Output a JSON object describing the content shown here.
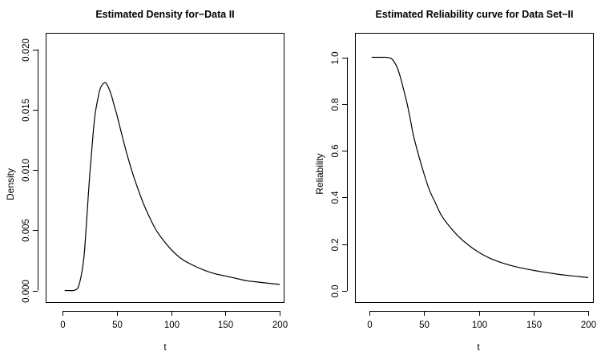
{
  "chart_data": [
    {
      "type": "line",
      "title": "Estimated Density for−Data II",
      "xlabel": "t",
      "ylabel": "Density",
      "xlim": [
        0,
        200
      ],
      "ylim": [
        0,
        0.021
      ],
      "x_ticks": [
        0,
        50,
        100,
        150,
        200
      ],
      "y_ticks": [
        0,
        0.005,
        0.01,
        0.015,
        0.02
      ],
      "x_tick_labels": [
        "0",
        "50",
        "100",
        "150",
        "200"
      ],
      "y_tick_labels": [
        "0.000",
        "0.005",
        "0.010",
        "0.015",
        "0.020"
      ],
      "grid": false,
      "series": [
        {
          "x": [
            2,
            10,
            13,
            15,
            18,
            20,
            22,
            25,
            28,
            30,
            33,
            35,
            38,
            40,
            42,
            45,
            48,
            50,
            55,
            60,
            65,
            70,
            75,
            80,
            85,
            90,
            100,
            110,
            120,
            130,
            140,
            150,
            160,
            170,
            180,
            190,
            200
          ],
          "y": [
            0.0,
            0.0,
            0.0001,
            0.0004,
            0.0016,
            0.003,
            0.0055,
            0.0095,
            0.0128,
            0.0146,
            0.0161,
            0.0168,
            0.0172,
            0.0172,
            0.0169,
            0.0162,
            0.0152,
            0.0146,
            0.0128,
            0.0111,
            0.0096,
            0.0083,
            0.0071,
            0.0061,
            0.0052,
            0.0045,
            0.0034,
            0.0026,
            0.0021,
            0.0017,
            0.0014,
            0.0012,
            0.001,
            0.0008,
            0.0007,
            0.0006,
            0.0005
          ]
        }
      ]
    },
    {
      "type": "line",
      "title": "Estimated Reliability curve for Data Set−II",
      "xlabel": "t",
      "ylabel": "Reliability",
      "xlim": [
        0,
        200
      ],
      "ylim": [
        0,
        1.0
      ],
      "x_ticks": [
        0,
        50,
        100,
        150,
        200
      ],
      "y_ticks": [
        0,
        0.2,
        0.4,
        0.6,
        0.8,
        1.0
      ],
      "x_tick_labels": [
        "0",
        "50",
        "100",
        "150",
        "200"
      ],
      "y_tick_labels": [
        "0.0",
        "0.2",
        "0.4",
        "0.6",
        "0.8",
        "1.0"
      ],
      "grid": false,
      "series": [
        {
          "x": [
            2,
            10,
            15,
            18,
            20,
            22,
            25,
            28,
            30,
            33,
            35,
            38,
            40,
            45,
            50,
            55,
            60,
            65,
            70,
            80,
            90,
            100,
            110,
            120,
            130,
            140,
            150,
            160,
            170,
            180,
            190,
            200
          ],
          "y": [
            1.0,
            1.0,
            1.0,
            0.998,
            0.995,
            0.985,
            0.96,
            0.92,
            0.885,
            0.83,
            0.79,
            0.72,
            0.67,
            0.58,
            0.5,
            0.43,
            0.38,
            0.33,
            0.295,
            0.24,
            0.198,
            0.165,
            0.14,
            0.122,
            0.108,
            0.097,
            0.088,
            0.08,
            0.073,
            0.067,
            0.062,
            0.057
          ]
        }
      ]
    }
  ]
}
